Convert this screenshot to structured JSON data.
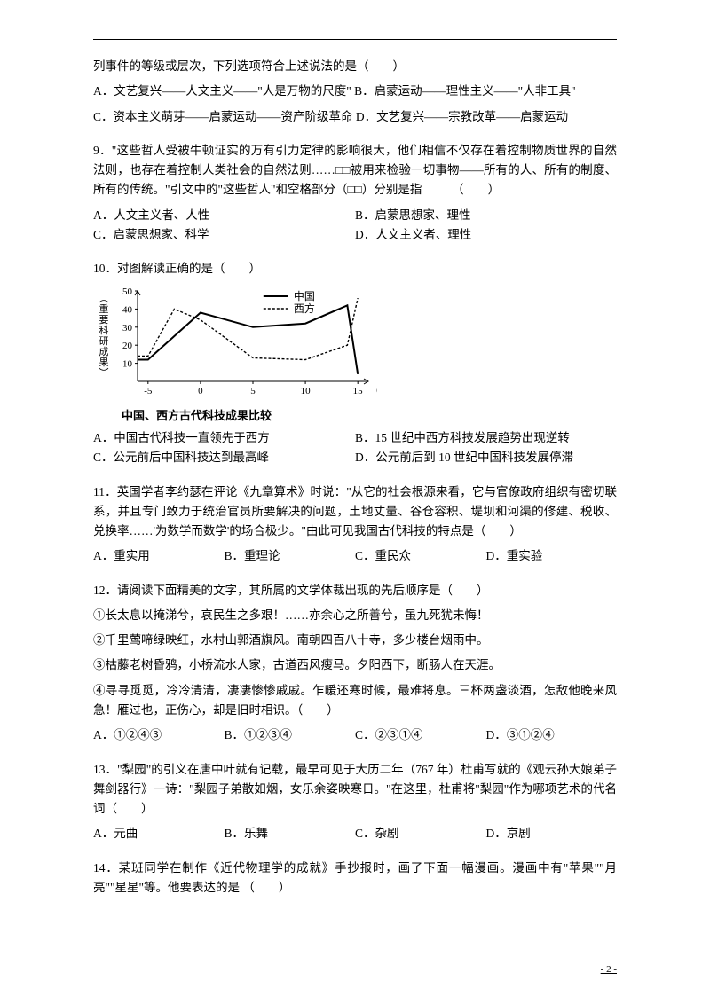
{
  "q8": {
    "stem1": "列事件的等级或层次，下列选项符合上述说法的是（　　）",
    "optA": "A．文艺复兴——人文主义——\"人是万物的尺度\" B．启蒙运动——理性主义——\"人非工具\"",
    "optC": "C．资本主义萌芽——启蒙运动——资产阶级革命 D．文艺复兴——宗教改革——启蒙运动"
  },
  "q9": {
    "stem": "9．\"这些哲人受被牛顿证实的万有引力定律的影响很大，他们相信不仅存在着控制物质世界的自然法则，也存在着控制人类社会的自然法则……□□被用来检验一切事物——所有的人、所有的制度、所有的传统。\"引文中的\"这些哲人\"和空格部分（□□）分别是指　　　（　　）",
    "optA": "A．人文主义者、人性",
    "optB": "B．启蒙思想家、理性",
    "optC": "C．启蒙思想家、科学",
    "optD": "D．人文主义者、理性"
  },
  "q10": {
    "stem": "10．对图解读正确的是（　　）",
    "chart": {
      "type": "line",
      "caption": "中国、西方古代科技成果比较",
      "y_label": "（重要科研成果）",
      "y_label_chars": [
        "︵",
        "重",
        "要",
        "科",
        "研",
        "成",
        "果",
        "︶"
      ],
      "x_label": "（世纪）",
      "x_ticks": [
        -5,
        0,
        5,
        10,
        15
      ],
      "y_ticks": [
        0,
        10,
        20,
        30,
        40,
        50
      ],
      "ylim": [
        0,
        50
      ],
      "xlim": [
        -6,
        16
      ],
      "series": [
        {
          "name": "中国",
          "stroke": "#000000",
          "stroke_width": 2.0,
          "dash": "none",
          "points": [
            [
              -6,
              12
            ],
            [
              -5,
              12
            ],
            [
              0,
              38
            ],
            [
              5,
              30
            ],
            [
              10,
              32
            ],
            [
              14,
              42
            ],
            [
              15,
              4
            ]
          ]
        },
        {
          "name": "西方",
          "stroke": "#000000",
          "stroke_width": 1.4,
          "dash": "3,2",
          "points": [
            [
              -6,
              14
            ],
            [
              -5,
              14
            ],
            [
              -2.5,
              40
            ],
            [
              0,
              34
            ],
            [
              5,
              13
            ],
            [
              10,
              12
            ],
            [
              14,
              20
            ],
            [
              15,
              46
            ]
          ]
        }
      ],
      "plot_bg": "#ffffff",
      "axis_color": "#000000",
      "tick_fontsize": 11,
      "legend_fontsize": 12,
      "y_label_fontsize": 11
    },
    "optA": "A．中国古代科技一直领先于西方",
    "optB": "B．15 世纪中西方科技发展趋势出现逆转",
    "optC": "C．公元前后中国科技达到最高峰",
    "optD": "D．公元前后到 10 世纪中国科技发展停滞"
  },
  "q11": {
    "stem": "11．英国学者李约瑟在评论《九章算术》时说：\"从它的社会根源来看，它与官僚政府组织有密切联系，并且专门致力于统治官员所要解决的问题，土地丈量、谷仓容积、堤坝和河渠的修建、税收、兑换率……'为数学而数学'的场合极少。\"由此可见我国古代科技的特点是（　　）",
    "optA": "A．重实用",
    "optB": "B．重理论",
    "optC": "C．重民众",
    "optD": "D．重实验"
  },
  "q12": {
    "stem": "12．请阅读下面精美的文字，其所属的文学体裁出现的先后顺序是（　　）",
    "line1": "①长太息以掩涕兮，哀民生之多艰！……亦余心之所善兮，虽九死犹未悔！",
    "line2": "②千里莺啼绿映红，水村山郭酒旗风。南朝四百八十寺，多少楼台烟雨中。",
    "line3": "③枯藤老树昏鸦，小桥流水人家，古道西风瘦马。夕阳西下，断肠人在天涯。",
    "line4": "④寻寻觅觅，冷冷清清，凄凄惨惨戚戚。乍暖还寒时候，最难将息。三杯两盏淡酒，怎敌他晚来风急！雁过也，正伤心，却是旧时相识。（　　）",
    "optA": "A．①②④③",
    "optB": "B．①②③④",
    "optC": "C．②③①④",
    "optD": "D．③①②④"
  },
  "q13": {
    "stem": "13．\"梨园\"的引义在唐中叶就有记载，最早可见于大历二年（767 年）杜甫写就的《观云孙大娘弟子舞剑器行》一诗：\"梨园子弟散如烟，女乐余姿映寒日。\"在这里，杜甫将\"梨园\"作为哪项艺术的代名词（　　）",
    "optA": "A．元曲",
    "optB": "B．乐舞",
    "optC": "C．杂剧",
    "optD": "D．京剧"
  },
  "q14": {
    "stem": "14．某班同学在制作《近代物理学的成就》手抄报时，画了下面一幅漫画。漫画中有\"苹果\"\"月亮\"\"星星\"等。他要表达的是 （　　）"
  },
  "footer": {
    "page": "- 2 -"
  }
}
